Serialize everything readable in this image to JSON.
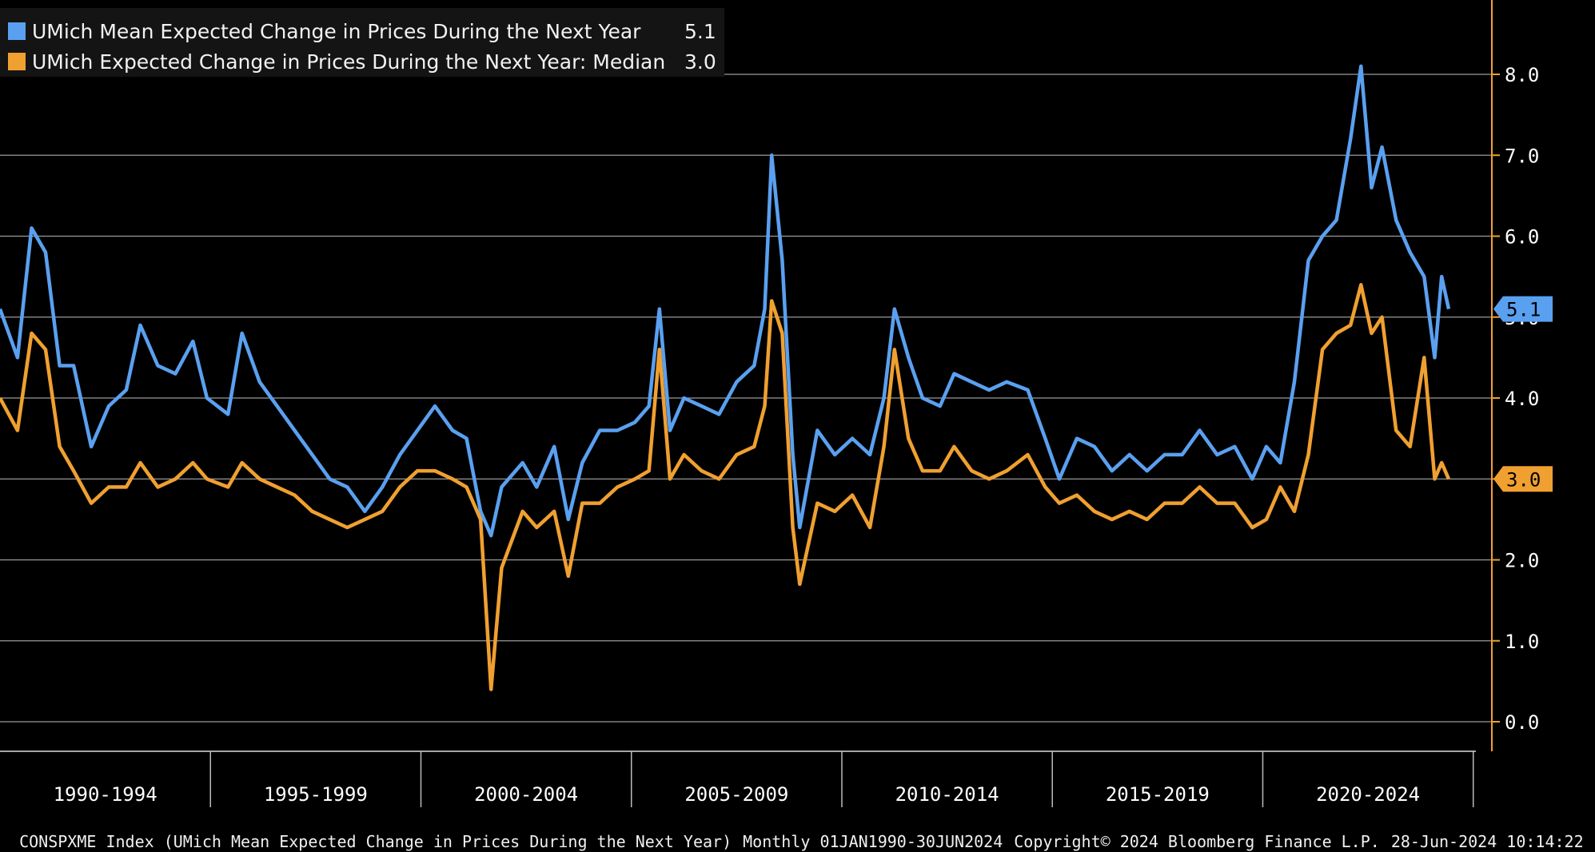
{
  "legend": {
    "mean_label": "UMich Mean Expected Change in Prices During the Next Year",
    "mean_value": "5.1",
    "median_label": "UMich Expected Change in Prices During the Next Year: Median",
    "median_value": "3.0"
  },
  "footer": {
    "index": "CONSPXME Index (UMich Mean Expected Change in Prices During the Next Year)",
    "range": "Monthly 01JAN1990-30JUN2024",
    "copyright": "Copyright© 2024 Bloomberg Finance L.P.",
    "timestamp": "28-Jun-2024 10:14:22"
  },
  "chart_data": {
    "type": "line",
    "ylim": [
      0,
      8.8
    ],
    "yticks": [
      "0.0",
      "1.0",
      "2.0",
      "3.0",
      "4.0",
      "5.0",
      "6.0",
      "7.0",
      "8.0"
    ],
    "x_groups": [
      "1990-1994",
      "1995-1999",
      "2000-2004",
      "2005-2009",
      "2010-2014",
      "2015-2019",
      "2020-2024"
    ],
    "grid": true,
    "legend_position": "top-left",
    "axis_side": "right",
    "end_labels": [
      "5.1",
      "3.0"
    ],
    "series": [
      {
        "name": "UMich Mean Expected Change in Prices During the Next Year",
        "color": "#5aa0f0",
        "points": [
          [
            "1990-01",
            5.1
          ],
          [
            "1990-06",
            4.5
          ],
          [
            "1990-10",
            6.1
          ],
          [
            "1991-02",
            5.8
          ],
          [
            "1991-06",
            4.4
          ],
          [
            "1991-10",
            4.4
          ],
          [
            "1992-03",
            3.4
          ],
          [
            "1992-08",
            3.9
          ],
          [
            "1993-01",
            4.1
          ],
          [
            "1993-05",
            4.9
          ],
          [
            "1993-10",
            4.4
          ],
          [
            "1994-03",
            4.3
          ],
          [
            "1994-08",
            4.7
          ],
          [
            "1994-12",
            4.0
          ],
          [
            "1995-06",
            3.8
          ],
          [
            "1995-10",
            4.8
          ],
          [
            "1996-03",
            4.2
          ],
          [
            "1996-08",
            3.9
          ],
          [
            "1997-01",
            3.6
          ],
          [
            "1997-06",
            3.3
          ],
          [
            "1997-11",
            3.0
          ],
          [
            "1998-04",
            2.9
          ],
          [
            "1998-09",
            2.6
          ],
          [
            "1999-02",
            2.9
          ],
          [
            "1999-07",
            3.3
          ],
          [
            "1999-12",
            3.6
          ],
          [
            "2000-05",
            3.9
          ],
          [
            "2000-10",
            3.6
          ],
          [
            "2001-02",
            3.5
          ],
          [
            "2001-06",
            2.6
          ],
          [
            "2001-09",
            2.3
          ],
          [
            "2001-12",
            2.9
          ],
          [
            "2002-06",
            3.2
          ],
          [
            "2002-10",
            2.9
          ],
          [
            "2003-03",
            3.4
          ],
          [
            "2003-07",
            2.5
          ],
          [
            "2003-11",
            3.2
          ],
          [
            "2004-04",
            3.6
          ],
          [
            "2004-09",
            3.6
          ],
          [
            "2005-02",
            3.7
          ],
          [
            "2005-06",
            3.9
          ],
          [
            "2005-09",
            5.1
          ],
          [
            "2005-12",
            3.6
          ],
          [
            "2006-04",
            4.0
          ],
          [
            "2006-09",
            3.9
          ],
          [
            "2007-02",
            3.8
          ],
          [
            "2007-07",
            4.2
          ],
          [
            "2007-12",
            4.4
          ],
          [
            "2008-03",
            5.1
          ],
          [
            "2008-05",
            7.0
          ],
          [
            "2008-08",
            5.7
          ],
          [
            "2008-11",
            3.3
          ],
          [
            "2009-01",
            2.4
          ],
          [
            "2009-06",
            3.6
          ],
          [
            "2009-11",
            3.3
          ],
          [
            "2010-04",
            3.5
          ],
          [
            "2010-09",
            3.3
          ],
          [
            "2011-01",
            4.0
          ],
          [
            "2011-04",
            5.1
          ],
          [
            "2011-08",
            4.5
          ],
          [
            "2011-12",
            4.0
          ],
          [
            "2012-05",
            3.9
          ],
          [
            "2012-09",
            4.3
          ],
          [
            "2013-02",
            4.2
          ],
          [
            "2013-07",
            4.1
          ],
          [
            "2013-12",
            4.2
          ],
          [
            "2014-06",
            4.1
          ],
          [
            "2014-11",
            3.5
          ],
          [
            "2015-03",
            3.0
          ],
          [
            "2015-08",
            3.5
          ],
          [
            "2016-01",
            3.4
          ],
          [
            "2016-06",
            3.1
          ],
          [
            "2016-11",
            3.3
          ],
          [
            "2017-04",
            3.1
          ],
          [
            "2017-09",
            3.3
          ],
          [
            "2018-02",
            3.3
          ],
          [
            "2018-07",
            3.6
          ],
          [
            "2018-12",
            3.3
          ],
          [
            "2019-05",
            3.4
          ],
          [
            "2019-10",
            3.0
          ],
          [
            "2020-02",
            3.4
          ],
          [
            "2020-06",
            3.2
          ],
          [
            "2020-10",
            4.2
          ],
          [
            "2021-02",
            5.7
          ],
          [
            "2021-06",
            6.0
          ],
          [
            "2021-10",
            6.2
          ],
          [
            "2022-02",
            7.2
          ],
          [
            "2022-05",
            8.1
          ],
          [
            "2022-08",
            6.6
          ],
          [
            "2022-11",
            7.1
          ],
          [
            "2023-03",
            6.2
          ],
          [
            "2023-07",
            5.8
          ],
          [
            "2023-11",
            5.5
          ],
          [
            "2024-02",
            4.5
          ],
          [
            "2024-04",
            5.5
          ],
          [
            "2024-06",
            5.1
          ]
        ]
      },
      {
        "name": "UMich Expected Change in Prices During the Next Year: Median",
        "color": "#f0a030",
        "points": [
          [
            "1990-01",
            4.0
          ],
          [
            "1990-06",
            3.6
          ],
          [
            "1990-10",
            4.8
          ],
          [
            "1991-02",
            4.6
          ],
          [
            "1991-06",
            3.4
          ],
          [
            "1991-10",
            3.1
          ],
          [
            "1992-03",
            2.7
          ],
          [
            "1992-08",
            2.9
          ],
          [
            "1993-01",
            2.9
          ],
          [
            "1993-05",
            3.2
          ],
          [
            "1993-10",
            2.9
          ],
          [
            "1994-03",
            3.0
          ],
          [
            "1994-08",
            3.2
          ],
          [
            "1994-12",
            3.0
          ],
          [
            "1995-06",
            2.9
          ],
          [
            "1995-10",
            3.2
          ],
          [
            "1996-03",
            3.0
          ],
          [
            "1996-08",
            2.9
          ],
          [
            "1997-01",
            2.8
          ],
          [
            "1997-06",
            2.6
          ],
          [
            "1997-11",
            2.5
          ],
          [
            "1998-04",
            2.4
          ],
          [
            "1998-09",
            2.5
          ],
          [
            "1999-02",
            2.6
          ],
          [
            "1999-07",
            2.9
          ],
          [
            "1999-12",
            3.1
          ],
          [
            "2000-05",
            3.1
          ],
          [
            "2000-10",
            3.0
          ],
          [
            "2001-02",
            2.9
          ],
          [
            "2001-06",
            2.5
          ],
          [
            "2001-09",
            0.4
          ],
          [
            "2001-12",
            1.9
          ],
          [
            "2002-06",
            2.6
          ],
          [
            "2002-10",
            2.4
          ],
          [
            "2003-03",
            2.6
          ],
          [
            "2003-07",
            1.8
          ],
          [
            "2003-11",
            2.7
          ],
          [
            "2004-04",
            2.7
          ],
          [
            "2004-09",
            2.9
          ],
          [
            "2005-02",
            3.0
          ],
          [
            "2005-06",
            3.1
          ],
          [
            "2005-09",
            4.6
          ],
          [
            "2005-12",
            3.0
          ],
          [
            "2006-04",
            3.3
          ],
          [
            "2006-09",
            3.1
          ],
          [
            "2007-02",
            3.0
          ],
          [
            "2007-07",
            3.3
          ],
          [
            "2007-12",
            3.4
          ],
          [
            "2008-03",
            3.9
          ],
          [
            "2008-05",
            5.2
          ],
          [
            "2008-08",
            4.8
          ],
          [
            "2008-11",
            2.4
          ],
          [
            "2009-01",
            1.7
          ],
          [
            "2009-06",
            2.7
          ],
          [
            "2009-11",
            2.6
          ],
          [
            "2010-04",
            2.8
          ],
          [
            "2010-09",
            2.4
          ],
          [
            "2011-01",
            3.4
          ],
          [
            "2011-04",
            4.6
          ],
          [
            "2011-08",
            3.5
          ],
          [
            "2011-12",
            3.1
          ],
          [
            "2012-05",
            3.1
          ],
          [
            "2012-09",
            3.4
          ],
          [
            "2013-02",
            3.1
          ],
          [
            "2013-07",
            3.0
          ],
          [
            "2013-12",
            3.1
          ],
          [
            "2014-06",
            3.3
          ],
          [
            "2014-11",
            2.9
          ],
          [
            "2015-03",
            2.7
          ],
          [
            "2015-08",
            2.8
          ],
          [
            "2016-01",
            2.6
          ],
          [
            "2016-06",
            2.5
          ],
          [
            "2016-11",
            2.6
          ],
          [
            "2017-04",
            2.5
          ],
          [
            "2017-09",
            2.7
          ],
          [
            "2018-02",
            2.7
          ],
          [
            "2018-07",
            2.9
          ],
          [
            "2018-12",
            2.7
          ],
          [
            "2019-05",
            2.7
          ],
          [
            "2019-10",
            2.4
          ],
          [
            "2020-02",
            2.5
          ],
          [
            "2020-06",
            2.9
          ],
          [
            "2020-10",
            2.6
          ],
          [
            "2021-02",
            3.3
          ],
          [
            "2021-06",
            4.6
          ],
          [
            "2021-10",
            4.8
          ],
          [
            "2022-02",
            4.9
          ],
          [
            "2022-05",
            5.4
          ],
          [
            "2022-08",
            4.8
          ],
          [
            "2022-11",
            5.0
          ],
          [
            "2023-03",
            3.6
          ],
          [
            "2023-07",
            3.4
          ],
          [
            "2023-11",
            4.5
          ],
          [
            "2024-02",
            3.0
          ],
          [
            "2024-04",
            3.2
          ],
          [
            "2024-06",
            3.0
          ]
        ]
      }
    ]
  }
}
